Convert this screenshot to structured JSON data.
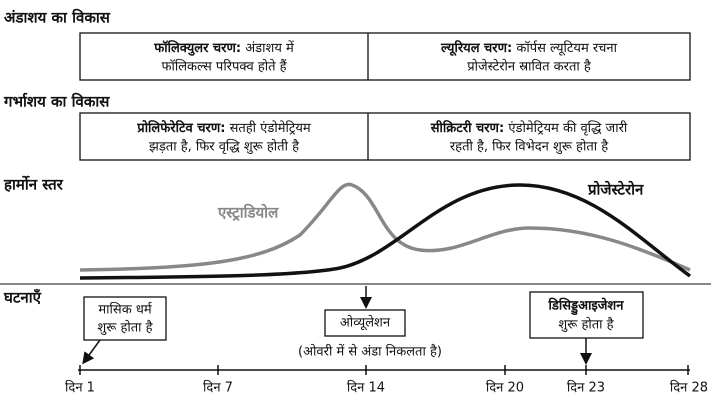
{
  "ovary": {
    "title": "अंडाशय का विकास",
    "phases": [
      {
        "name": "फॉलिक्युलर चरण:",
        "line1": "अंडाशय में",
        "line2": "फॉलिकल्स परिपक्व होते हैं"
      },
      {
        "name": "ल्यूरियल चरण:",
        "line1": "कॉर्पस ल्यूटियम रचना",
        "line2": "प्रोजेस्टेरोन स्रावित करता है"
      }
    ]
  },
  "uterus": {
    "title": "गर्भाशय का विकास",
    "phases": [
      {
        "name": "प्रोलिफेरेटिव चरण:",
        "line1": "सतही एंडोमेट्रियम",
        "line2": "झड़ता है, फिर वृद्धि शुरू होती है"
      },
      {
        "name": "सीक्रिटरी चरण:",
        "line1": "एंडोमेट्रियम की वृद्धि जारी",
        "line2": "रहती है, फिर विभेदन शुरू होता है"
      }
    ]
  },
  "hormones": {
    "title": "हार्मोन स्तर",
    "estradiol": "एस्ट्राडियोल",
    "progesterone": "प्रोजेस्टेरोन"
  },
  "events": {
    "title": "घटनाएँ",
    "menstruation": [
      "मासिक धर्म",
      "शुरू होता है"
    ],
    "ovulation": "ओव्यूलेशन",
    "ovulation_note": "(ओवरी में से अंडा निकलता है)",
    "decidualization": [
      "डिसिड्डुआइजेशन",
      "शुरू होता है"
    ]
  },
  "timeline": {
    "days": [
      "दिन 1",
      "दिन 7",
      "दिन 14",
      "दिन 20",
      "दिन 23",
      "दिन 28"
    ]
  }
}
